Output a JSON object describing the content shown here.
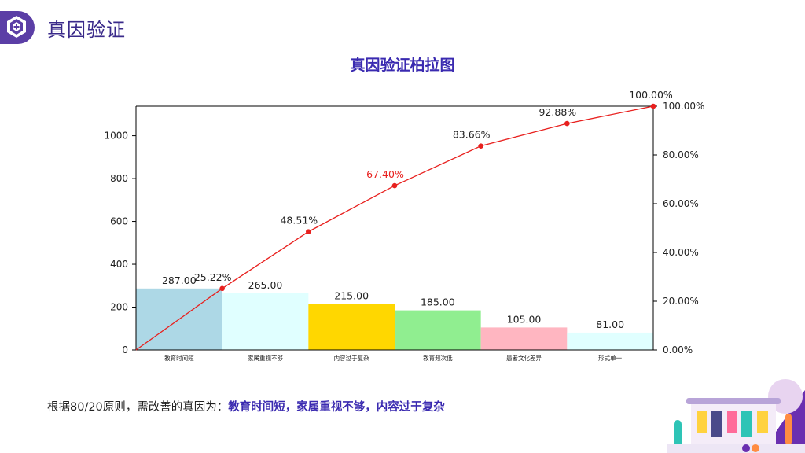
{
  "page": {
    "title": "真因验证"
  },
  "chart_title": "真因验证柏拉图",
  "conclusion": {
    "prefix": "根据80/20原则，需改善的真因为：",
    "highlight": "教育时间短，家属重视不够，内容过于复杂"
  },
  "colors": {
    "accent": "#5b3ea6",
    "title": "#3a2ab0",
    "line": "#e8201e"
  },
  "icons": {
    "header": "hexagon-badge-icon",
    "decoration": "building-illustration-icon"
  },
  "chart_data": {
    "type": "bar",
    "title": "真因验证柏拉图",
    "categories": [
      "教育时间短",
      "家属重视不够",
      "内容过于复杂",
      "教育频次低",
      "患者文化差异",
      "形式单一"
    ],
    "values": [
      287,
      265,
      215,
      185,
      105,
      81
    ],
    "value_labels": [
      "287.00",
      "265.00",
      "215.00",
      "185.00",
      "105.00",
      "81.00"
    ],
    "bar_colors": [
      "#add8e6",
      "#e0ffff",
      "#ffd700",
      "#90ee90",
      "#ffb6c1",
      "#e0ffff"
    ],
    "cumulative": [
      0,
      25.22,
      48.51,
      67.4,
      83.66,
      92.88,
      100.0
    ],
    "cumulative_labels": [
      "25.22%",
      "48.51%",
      "67.40%",
      "83.66%",
      "92.88%",
      "100.00%"
    ],
    "highlight_label_index": 2,
    "left_axis": {
      "ylim": [
        0,
        1138
      ],
      "ticks": [
        0,
        200,
        400,
        600,
        800,
        1000
      ]
    },
    "right_axis": {
      "ylim": [
        0,
        100
      ],
      "ticks": [
        0,
        20,
        40,
        60,
        80,
        100
      ],
      "tick_labels": [
        "0.00%",
        "20.00%",
        "40.00%",
        "60.00%",
        "80.00%",
        "100.00%"
      ]
    },
    "grid": false,
    "legend": "none"
  }
}
